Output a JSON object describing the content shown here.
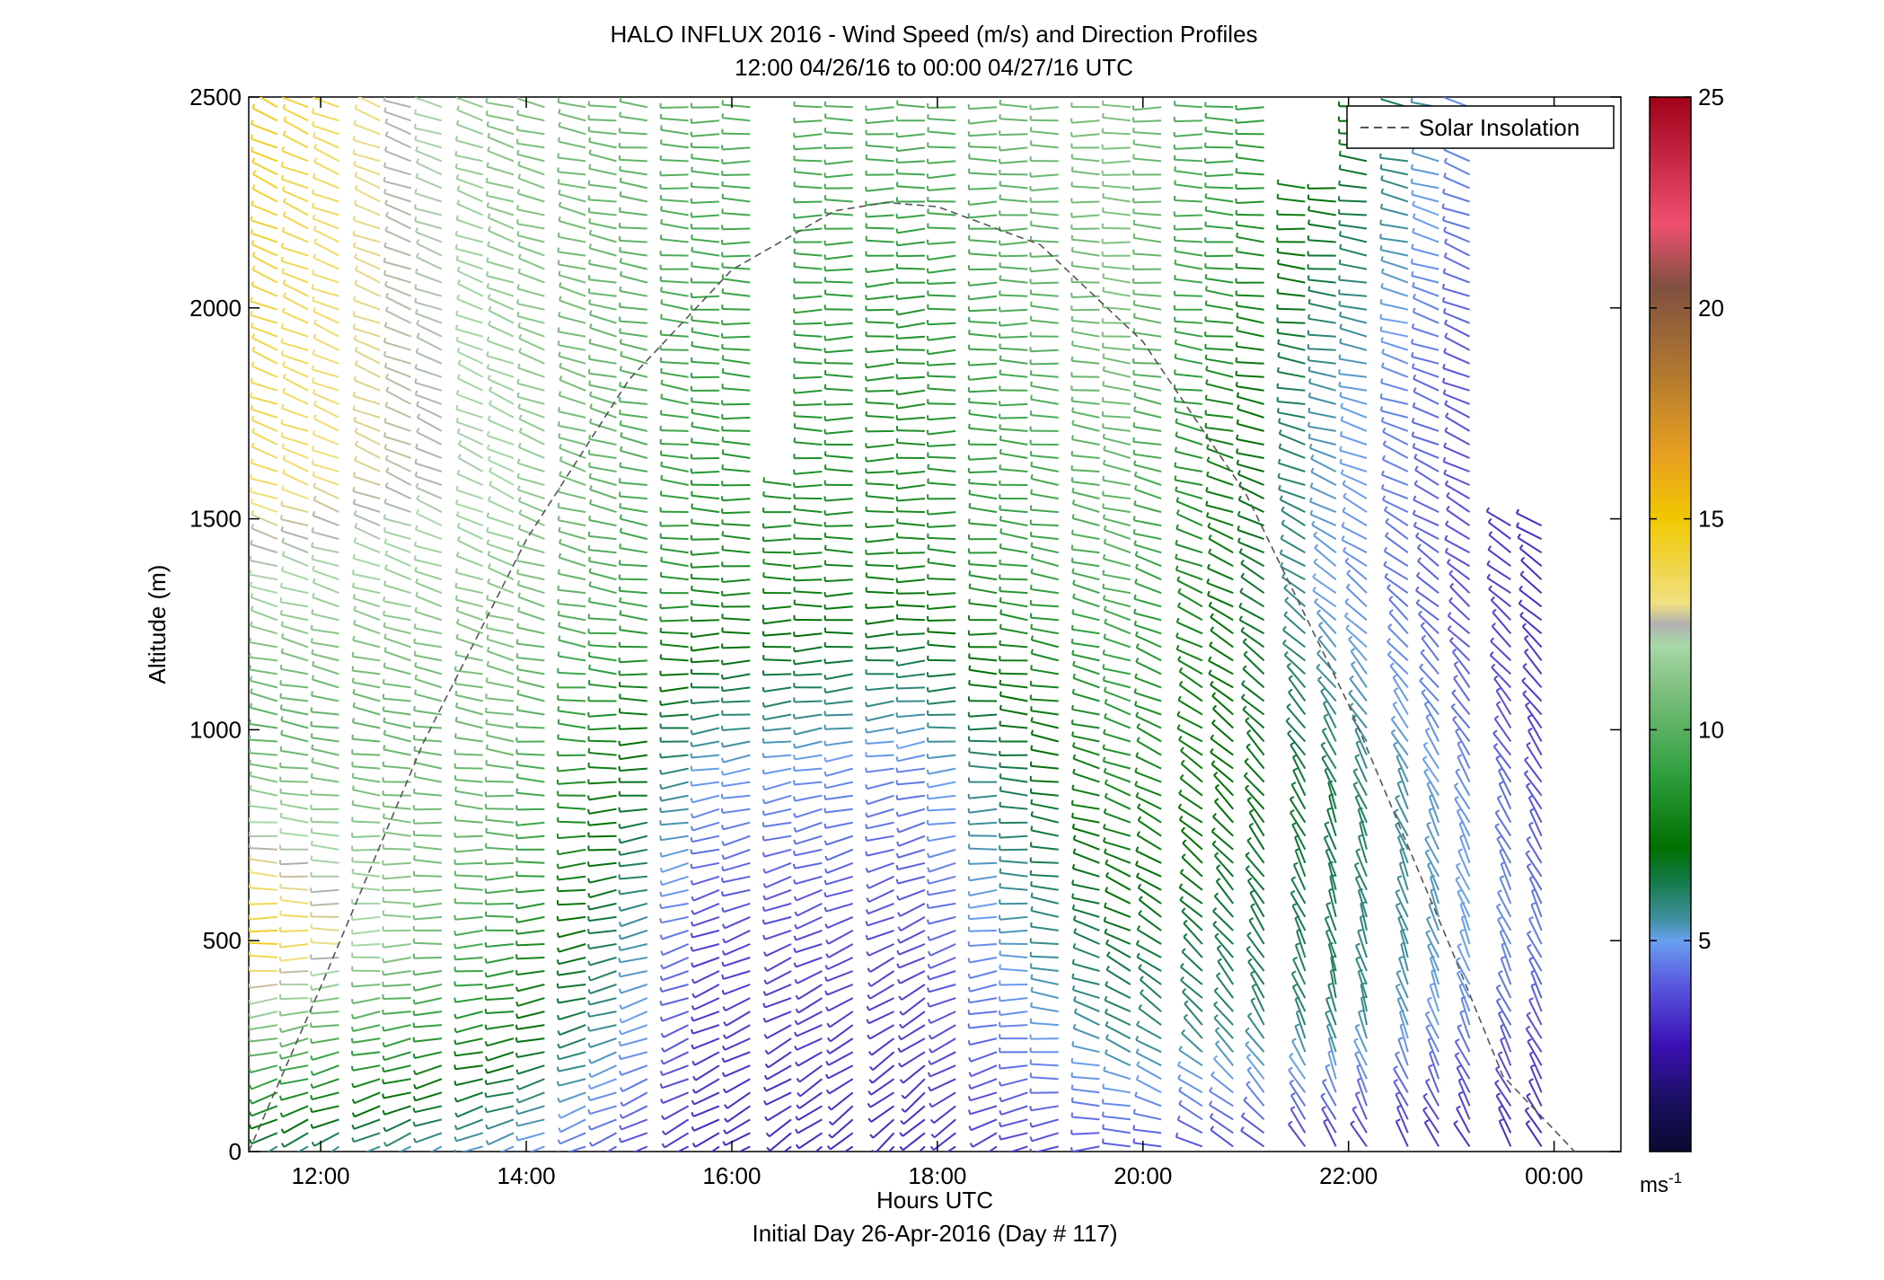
{
  "figure": {
    "title_line1": "HALO INFLUX 2016 - Wind Speed (m/s) and Direction Profiles",
    "title_line2": "12:00 04/26/16 to 00:00 04/27/16  UTC",
    "xlabel": "Hours UTC",
    "xlabel_sub": "Initial Day 26-Apr-2016 (Day # 117)",
    "ylabel": "Altitude (m)",
    "colorbar_unit": "ms",
    "colorbar_unit_exp": "-1"
  },
  "chart_data": {
    "type": "wind_barb_profile",
    "x_unit": "hours UTC",
    "xlim": [
      11.3,
      24.65
    ],
    "ylim": [
      0,
      2500
    ],
    "x_ticks": [
      {
        "value": 12,
        "label": "12:00"
      },
      {
        "value": 14,
        "label": "14:00"
      },
      {
        "value": 16,
        "label": "16:00"
      },
      {
        "value": 18,
        "label": "18:00"
      },
      {
        "value": 20,
        "label": "20:00"
      },
      {
        "value": 22,
        "label": "22:00"
      },
      {
        "value": 24,
        "label": "00:00"
      }
    ],
    "y_ticks": [
      {
        "value": 0,
        "label": "0"
      },
      {
        "value": 500,
        "label": "500"
      },
      {
        "value": 1000,
        "label": "1000"
      },
      {
        "value": 1500,
        "label": "1500"
      },
      {
        "value": 2000,
        "label": "2000"
      },
      {
        "value": 2500,
        "label": "2500"
      }
    ],
    "profile_times": [
      11.7,
      12.0,
      12.3,
      12.7,
      13.0,
      13.3,
      13.7,
      14.0,
      14.3,
      14.7,
      15.0,
      15.3,
      15.7,
      16.0,
      16.3,
      16.7,
      17.0,
      17.3,
      17.7,
      18.0,
      18.3,
      18.7,
      19.0,
      19.3,
      19.7,
      20.0,
      20.3,
      20.7,
      21.0,
      21.3,
      21.7,
      22.0,
      22.3,
      22.7,
      23.0,
      23.3,
      23.7,
      24.0
    ],
    "profile_tops_m": [
      2500,
      2500,
      2500,
      2500,
      2500,
      2500,
      2500,
      2500,
      2500,
      2500,
      2500,
      2500,
      2500,
      2500,
      2500,
      1600,
      2500,
      2500,
      2500,
      2500,
      2500,
      2500,
      2500,
      2500,
      2500,
      2500,
      2500,
      2500,
      2500,
      2500,
      2300,
      2300,
      2500,
      2500,
      2500,
      2500,
      1500,
      1500
    ],
    "gate_spacing_m": 32,
    "wind_profile_keyframes": [
      {
        "time": 11.7,
        "levels": [
          {
            "alt": 0,
            "speed": 5.5,
            "dir": 235
          },
          {
            "alt": 100,
            "speed": 8.0,
            "dir": 250
          },
          {
            "alt": 300,
            "speed": 11.0,
            "dir": 260
          },
          {
            "alt": 500,
            "speed": 14.5,
            "dir": 270
          },
          {
            "alt": 1000,
            "speed": 10.0,
            "dir": 280
          },
          {
            "alt": 1600,
            "speed": 13.5,
            "dir": 290
          },
          {
            "alt": 2500,
            "speed": 14.5,
            "dir": 295
          }
        ]
      },
      {
        "time": 14.0,
        "levels": [
          {
            "alt": 0,
            "speed": 5.0,
            "dir": 250
          },
          {
            "alt": 300,
            "speed": 8.0,
            "dir": 260
          },
          {
            "alt": 700,
            "speed": 10.0,
            "dir": 270
          },
          {
            "alt": 1200,
            "speed": 11.0,
            "dir": 285
          },
          {
            "alt": 1600,
            "speed": 12.0,
            "dir": 295
          },
          {
            "alt": 2500,
            "speed": 11.0,
            "dir": 285
          }
        ]
      },
      {
        "time": 16.0,
        "levels": [
          {
            "alt": 0,
            "speed": 3.0,
            "dir": 240
          },
          {
            "alt": 500,
            "speed": 3.5,
            "dir": 250
          },
          {
            "alt": 900,
            "speed": 5.0,
            "dir": 260
          },
          {
            "alt": 1300,
            "speed": 8.0,
            "dir": 270
          },
          {
            "alt": 1800,
            "speed": 9.0,
            "dir": 275
          },
          {
            "alt": 2500,
            "speed": 10.0,
            "dir": 270
          }
        ]
      },
      {
        "time": 18.0,
        "levels": [
          {
            "alt": 0,
            "speed": 3.0,
            "dir": 225
          },
          {
            "alt": 400,
            "speed": 3.5,
            "dir": 240
          },
          {
            "alt": 900,
            "speed": 4.5,
            "dir": 260
          },
          {
            "alt": 1400,
            "speed": 8.0,
            "dir": 270
          },
          {
            "alt": 2000,
            "speed": 8.5,
            "dir": 265
          },
          {
            "alt": 2500,
            "speed": 10.0,
            "dir": 270
          }
        ]
      },
      {
        "time": 20.0,
        "levels": [
          {
            "alt": 0,
            "speed": 4.0,
            "dir": 270
          },
          {
            "alt": 300,
            "speed": 6.0,
            "dir": 300
          },
          {
            "alt": 800,
            "speed": 8.0,
            "dir": 290
          },
          {
            "alt": 1400,
            "speed": 10.0,
            "dir": 285
          },
          {
            "alt": 2000,
            "speed": 11.0,
            "dir": 275
          },
          {
            "alt": 2500,
            "speed": 11.0,
            "dir": 270
          }
        ]
      },
      {
        "time": 22.0,
        "levels": [
          {
            "alt": 0,
            "speed": 3.5,
            "dir": 330
          },
          {
            "alt": 300,
            "speed": 6.0,
            "dir": 345
          },
          {
            "alt": 800,
            "speed": 6.5,
            "dir": 340
          },
          {
            "alt": 1300,
            "speed": 5.0,
            "dir": 310
          },
          {
            "alt": 1800,
            "speed": 5.5,
            "dir": 280
          },
          {
            "alt": 2500,
            "speed": 8.0,
            "dir": 270
          }
        ]
      },
      {
        "time": 24.0,
        "levels": [
          {
            "alt": 0,
            "speed": 3.0,
            "dir": 330
          },
          {
            "alt": 500,
            "speed": 4.5,
            "dir": 335
          },
          {
            "alt": 1000,
            "speed": 3.5,
            "dir": 325
          },
          {
            "alt": 1500,
            "speed": 3.0,
            "dir": 300
          }
        ]
      }
    ],
    "solar_insolation": {
      "legend_label": "Solar Insolation",
      "style": "dashed",
      "color": "#555555",
      "points": [
        {
          "t": 11.3,
          "alt": 0
        },
        {
          "t": 12.0,
          "alt": 390
        },
        {
          "t": 13.0,
          "alt": 970
        },
        {
          "t": 14.0,
          "alt": 1450
        },
        {
          "t": 15.0,
          "alt": 1830
        },
        {
          "t": 16.0,
          "alt": 2090
        },
        {
          "t": 17.0,
          "alt": 2230
        },
        {
          "t": 17.5,
          "alt": 2250
        },
        {
          "t": 18.0,
          "alt": 2240
        },
        {
          "t": 19.0,
          "alt": 2150
        },
        {
          "t": 20.0,
          "alt": 1920
        },
        {
          "t": 21.0,
          "alt": 1560
        },
        {
          "t": 22.0,
          "alt": 1060
        },
        {
          "t": 23.0,
          "alt": 480
        },
        {
          "t": 23.5,
          "alt": 180
        },
        {
          "t": 24.2,
          "alt": 0
        }
      ]
    },
    "legend": {
      "entries": [
        "Solar Insolation"
      ],
      "placement": "top-right"
    },
    "colorbar": {
      "range": [
        0,
        25
      ],
      "ticks": [
        {
          "value": 5,
          "label": "5"
        },
        {
          "value": 10,
          "label": "10"
        },
        {
          "value": 15,
          "label": "15"
        },
        {
          "value": 20,
          "label": "20"
        },
        {
          "value": 25,
          "label": "25"
        }
      ],
      "colormap_stops": [
        {
          "v": 0,
          "color": "#0a0a30"
        },
        {
          "v": 1.2,
          "color": "#1a1060"
        },
        {
          "v": 2.5,
          "color": "#3a0fb4"
        },
        {
          "v": 4.0,
          "color": "#5a5ae0"
        },
        {
          "v": 5.0,
          "color": "#6aa0f0"
        },
        {
          "v": 5.5,
          "color": "#4090a0"
        },
        {
          "v": 6.5,
          "color": "#107840"
        },
        {
          "v": 7.2,
          "color": "#007000"
        },
        {
          "v": 9.0,
          "color": "#30a040"
        },
        {
          "v": 11.0,
          "color": "#80c080"
        },
        {
          "v": 12.0,
          "color": "#a8d8a8"
        },
        {
          "v": 12.5,
          "color": "#b0b0b0"
        },
        {
          "v": 13.0,
          "color": "#f0e080"
        },
        {
          "v": 15.0,
          "color": "#f0c800"
        },
        {
          "v": 16.5,
          "color": "#e8a020"
        },
        {
          "v": 18.5,
          "color": "#b07830"
        },
        {
          "v": 20.5,
          "color": "#805040"
        },
        {
          "v": 22.0,
          "color": "#f05070"
        },
        {
          "v": 25.0,
          "color": "#a00018"
        }
      ]
    }
  }
}
